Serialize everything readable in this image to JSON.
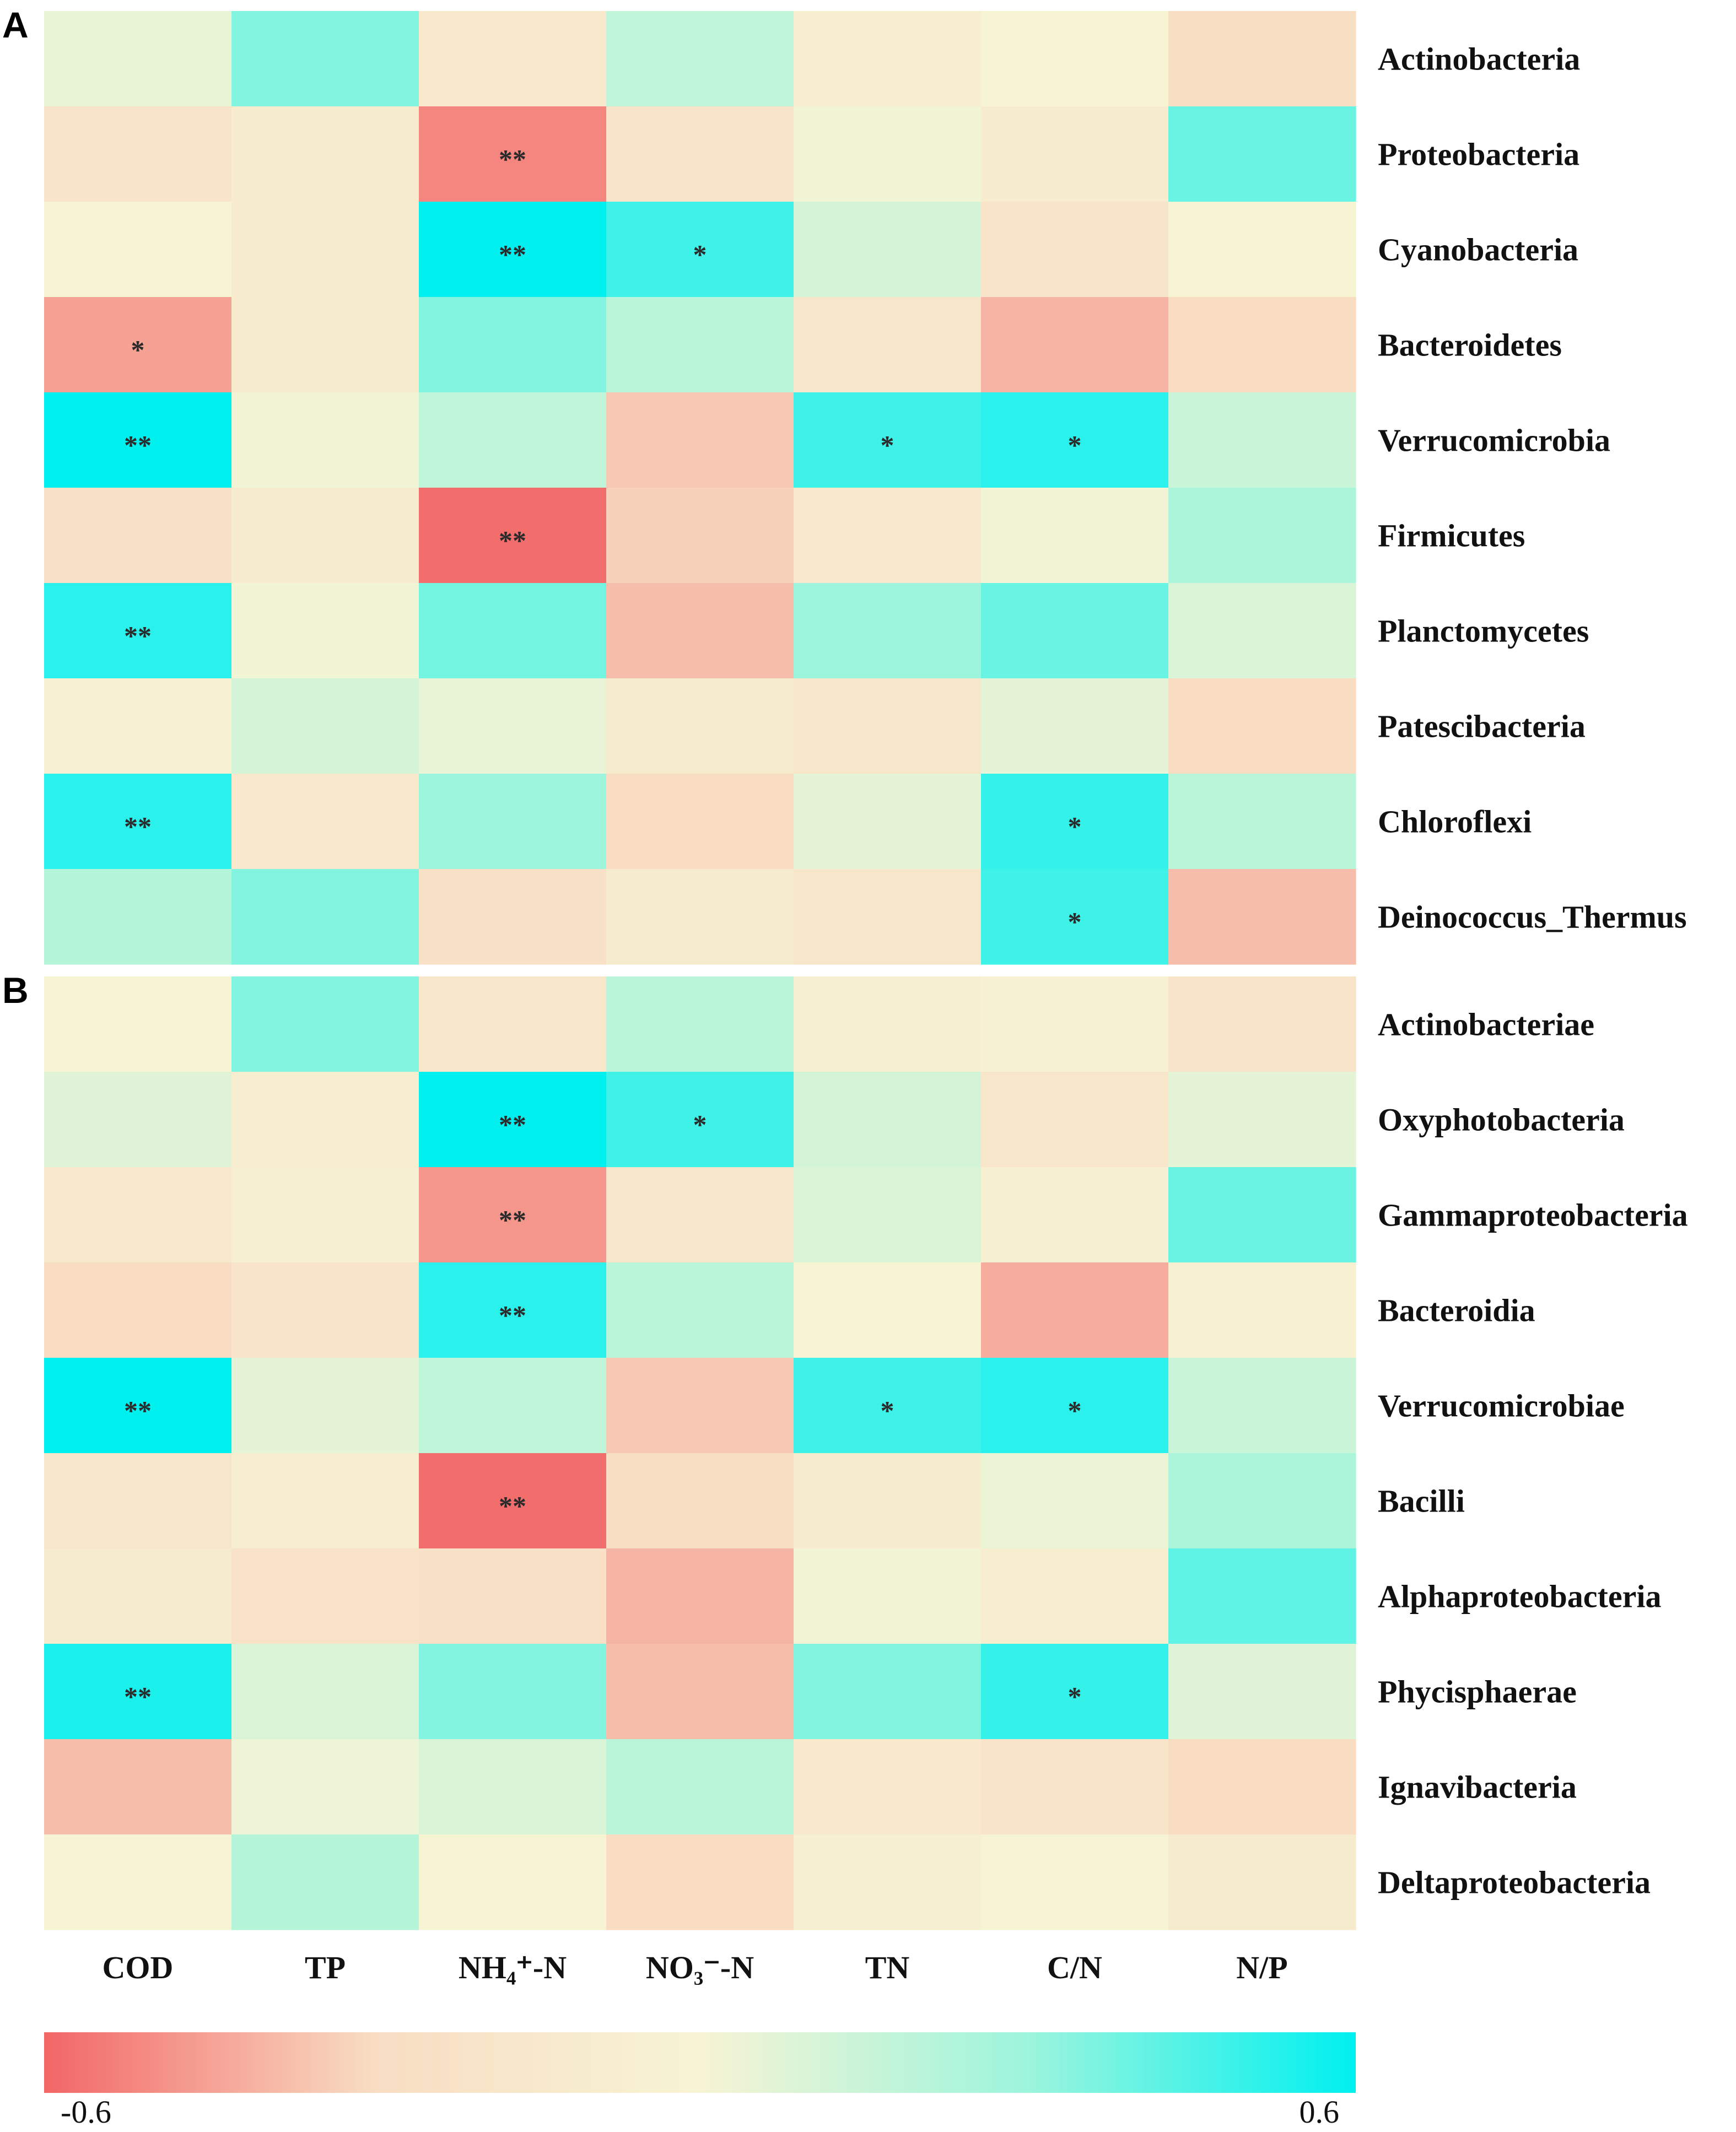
{
  "chart_data": {
    "type": "heatmap",
    "columns": [
      "COD",
      "TP",
      "NH₄⁺-N",
      "NO₃⁻-N",
      "TN",
      "C/N",
      "N/P"
    ],
    "color_scale": {
      "min": -0.6,
      "max": 0.6,
      "min_label": "-0.6",
      "max_label": "0.6",
      "stops": [
        "#f26666",
        "#f8ddc3",
        "#f7f4d4",
        "#9cf5dc",
        "#00f0f0"
      ]
    },
    "panels": [
      {
        "label": "A",
        "rows": [
          {
            "name": "Actinobacteria",
            "values": [
              0.05,
              0.35,
              -0.15,
              0.18,
              -0.08,
              0.0,
              -0.28
            ],
            "sig": [
              "",
              "",
              "",
              "",
              "",
              "",
              ""
            ]
          },
          {
            "name": "Proteobacteria",
            "values": [
              -0.2,
              -0.1,
              -0.52,
              -0.2,
              0.02,
              -0.1,
              0.4
            ],
            "sig": [
              "",
              "",
              "**",
              "",
              "",
              "",
              ""
            ]
          },
          {
            "name": "Cyanobacteria",
            "values": [
              0.0,
              -0.1,
              0.6,
              0.48,
              0.12,
              -0.2,
              0.0
            ],
            "sig": [
              "",
              "",
              "**",
              "*",
              "",
              "",
              ""
            ]
          },
          {
            "name": "Bacteroidetes",
            "values": [
              -0.45,
              -0.1,
              0.35,
              0.2,
              -0.18,
              -0.4,
              -0.3
            ],
            "sig": [
              "*",
              "",
              "",
              "",
              "",
              "",
              ""
            ]
          },
          {
            "name": "Verrucomicrobia",
            "values": [
              0.6,
              0.02,
              0.18,
              -0.35,
              0.48,
              0.52,
              0.15
            ],
            "sig": [
              "**",
              "",
              "",
              "",
              "*",
              "*",
              ""
            ]
          },
          {
            "name": "Firmicutes",
            "values": [
              -0.25,
              -0.1,
              -0.58,
              -0.33,
              -0.15,
              0.02,
              0.25
            ],
            "sig": [
              "",
              "",
              "**",
              "",
              "",
              "",
              ""
            ]
          },
          {
            "name": "Planctomycetes",
            "values": [
              0.52,
              0.02,
              0.38,
              -0.38,
              0.3,
              0.4,
              0.1
            ],
            "sig": [
              "**",
              "",
              "",
              "",
              "",
              "",
              ""
            ]
          },
          {
            "name": "Patescibacteria",
            "values": [
              -0.05,
              0.12,
              0.05,
              -0.12,
              -0.18,
              0.06,
              -0.3
            ],
            "sig": [
              "",
              "",
              "",
              "",
              "",
              "",
              ""
            ]
          },
          {
            "name": "Chloroflexi",
            "values": [
              0.52,
              -0.15,
              0.3,
              -0.3,
              0.06,
              0.5,
              0.2
            ],
            "sig": [
              "**",
              "",
              "",
              "",
              "",
              "*",
              ""
            ]
          },
          {
            "name": "Deinococcus_Thermus",
            "values": [
              0.22,
              0.35,
              -0.25,
              -0.12,
              -0.18,
              0.48,
              -0.38
            ],
            "sig": [
              "",
              "",
              "",
              "",
              "",
              "*",
              ""
            ]
          }
        ]
      },
      {
        "label": "B",
        "rows": [
          {
            "name": "Actinobacteriae",
            "values": [
              0.0,
              0.35,
              -0.18,
              0.2,
              -0.06,
              -0.02,
              -0.2
            ],
            "sig": [
              "",
              "",
              "",
              "",
              "",
              "",
              ""
            ]
          },
          {
            "name": "Oxyphotobacteria",
            "values": [
              0.08,
              -0.08,
              0.6,
              0.48,
              0.12,
              -0.18,
              0.06
            ],
            "sig": [
              "",
              "",
              "**",
              "*",
              "",
              "",
              ""
            ]
          },
          {
            "name": "Gammaproteobacteria",
            "values": [
              -0.15,
              -0.06,
              -0.48,
              -0.18,
              0.1,
              -0.06,
              0.4
            ],
            "sig": [
              "",
              "",
              "**",
              "",
              "",
              "",
              ""
            ]
          },
          {
            "name": "Bacteroidia",
            "values": [
              -0.3,
              -0.2,
              0.52,
              0.2,
              0.0,
              -0.42,
              -0.04
            ],
            "sig": [
              "",
              "",
              "**",
              "",
              "",
              "",
              ""
            ]
          },
          {
            "name": "Verrucomicrobiae",
            "values": [
              0.6,
              0.06,
              0.18,
              -0.35,
              0.48,
              0.52,
              0.15
            ],
            "sig": [
              "**",
              "",
              "",
              "",
              "*",
              "*",
              ""
            ]
          },
          {
            "name": "Bacilli",
            "values": [
              -0.18,
              -0.08,
              -0.58,
              -0.28,
              -0.1,
              0.04,
              0.25
            ],
            "sig": [
              "",
              "",
              "**",
              "",
              "",
              "",
              ""
            ]
          },
          {
            "name": "Alphaproteobacteria",
            "values": [
              -0.12,
              -0.22,
              -0.25,
              -0.4,
              0.02,
              -0.08,
              0.42
            ],
            "sig": [
              "",
              "",
              "",
              "",
              "",
              "",
              ""
            ]
          },
          {
            "name": "Phycisphaerae",
            "values": [
              0.55,
              0.1,
              0.35,
              -0.38,
              0.35,
              0.5,
              0.08
            ],
            "sig": [
              "**",
              "",
              "",
              "",
              "",
              "*",
              ""
            ]
          },
          {
            "name": "Ignavibacteria",
            "values": [
              -0.38,
              0.03,
              0.1,
              0.2,
              -0.15,
              -0.2,
              -0.3
            ],
            "sig": [
              "",
              "",
              "",
              "",
              "",
              "",
              ""
            ]
          },
          {
            "name": "Deltaproteobacteria",
            "values": [
              0.0,
              0.22,
              0.0,
              -0.3,
              -0.06,
              0.0,
              -0.12
            ],
            "sig": [
              "",
              "",
              "",
              "",
              "",
              "",
              ""
            ]
          }
        ]
      }
    ]
  }
}
